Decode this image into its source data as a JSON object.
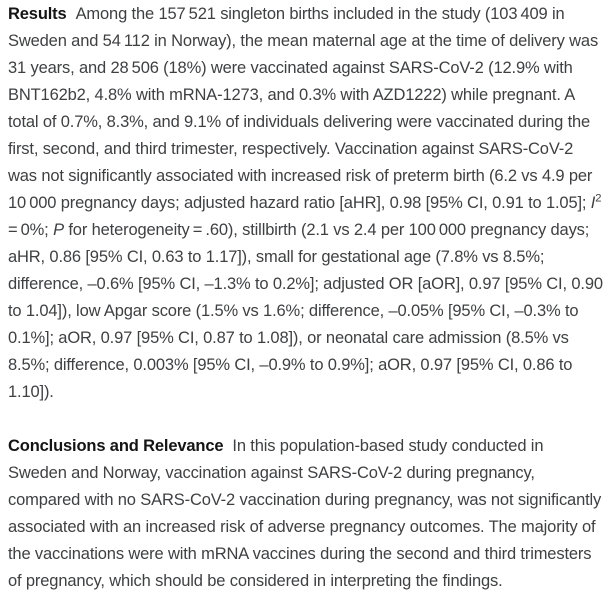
{
  "colors": {
    "background": "#ffffff",
    "body_text": "#3f4042",
    "label_text": "#141414"
  },
  "abstract": {
    "sections": [
      {
        "label": "Results",
        "segments": [
          {
            "style": "normal",
            "text": "Among the 157 521 singleton births included in the study (103 409 in Sweden and 54 112 in Norway), the mean maternal age at the time of delivery was 31 years, and 28 506 (18%) were vaccinated against SARS-CoV-2 (12.9% with BNT162b2, 4.8% with mRNA-1273, and 0.3% with AZD1222) while pregnant. A total of 0.7%, 8.3%, and 9.1% of individuals delivering were vaccinated during the first, second, and third trimester, respectively. Vaccination against SARS-CoV-2 was not significantly associated with increased risk of preterm birth (6.2 vs 4.9 per 10 000 pregnancy days; adjusted hazard ratio [aHR], 0.98 [95% CI, 0.91 to 1.05]; "
          },
          {
            "style": "italic",
            "text": "I"
          },
          {
            "style": "superscript",
            "text": "2"
          },
          {
            "style": "normal",
            "text": " = 0%; "
          },
          {
            "style": "italic",
            "text": "P"
          },
          {
            "style": "normal",
            "text": " for heterogeneity = .60), stillbirth (2.1 vs 2.4 per 100 000 pregnancy days; aHR, 0.86 [95% CI, 0.63 to 1.17]), small for gestational age (7.8% vs 8.5%; difference, –0.6% [95% CI, –1.3% to 0.2%]; adjusted OR [aOR], 0.97 [95% CI, 0.90 to 1.04]), low Apgar score (1.5% vs 1.6%; difference, –0.05% [95% CI, –0.3% to 0.1%]; aOR, 0.97 [95% CI, 0.87 to 1.08]), or neonatal care admission (8.5% vs 8.5%; difference, 0.003% [95% CI, –0.9% to 0.9%]; aOR, 0.97 [95% CI, 0.86 to 1.10])."
          }
        ]
      },
      {
        "label": "Conclusions and Relevance",
        "segments": [
          {
            "style": "normal",
            "text": "In this population-based study conducted in Sweden and Norway, vaccination against SARS-CoV-2 during pregnancy, compared with no SARS-CoV-2 vaccination during pregnancy, was not significantly associated with an increased risk of adverse pregnancy outcomes. The majority of the vaccinations were with mRNA vaccines during the second and third trimesters of pregnancy, which should be considered in interpreting the findings."
          }
        ]
      }
    ]
  }
}
